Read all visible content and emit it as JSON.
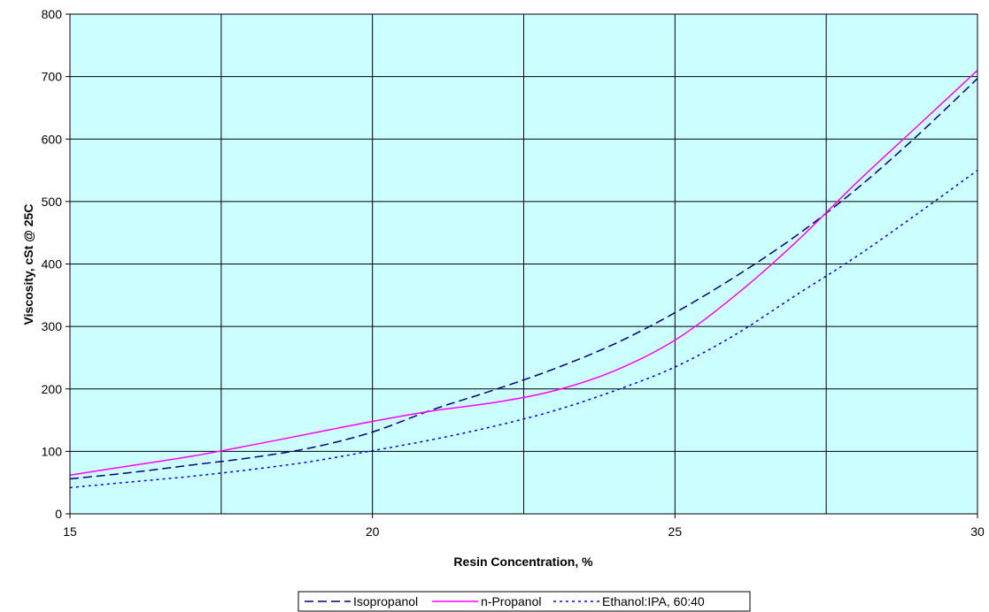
{
  "chart_data": {
    "type": "line",
    "title": "",
    "xlabel": "Resin Concentration, %",
    "ylabel": "Viscosity, cSt @ 25C",
    "xlim": [
      15,
      30
    ],
    "ylim": [
      0,
      800
    ],
    "x_ticks": [
      15,
      20,
      25,
      30
    ],
    "y_ticks": [
      0,
      100,
      200,
      300,
      400,
      500,
      600,
      700,
      800
    ],
    "grid": true,
    "plot_background": "#ccffff",
    "legend_position": "bottom",
    "series": [
      {
        "name": "Isopropanol",
        "color": "#000080",
        "dash": "dashed",
        "x": [
          15,
          16,
          17,
          18,
          19,
          20,
          21,
          22,
          23,
          24,
          25,
          26,
          27,
          28,
          29,
          30
        ],
        "y": [
          56,
          66,
          78,
          90,
          106,
          131,
          167,
          198,
          232,
          272,
          322,
          380,
          445,
          520,
          605,
          697
        ]
      },
      {
        "name": "n-Propanol",
        "color": "#ff00ff",
        "dash": "solid",
        "x": [
          15,
          16,
          17,
          18,
          19,
          20,
          21,
          22,
          23,
          24,
          25,
          26,
          27,
          28,
          29,
          30
        ],
        "y": [
          62,
          77,
          92,
          110,
          129,
          148,
          165,
          178,
          197,
          229,
          278,
          350,
          435,
          530,
          620,
          710
        ]
      },
      {
        "name": "Ethanol:IPA, 60:40",
        "color": "#0000ff",
        "dash": "dotted",
        "x": [
          15,
          16,
          17,
          18,
          19,
          20,
          21,
          22,
          23,
          24,
          25,
          26,
          27,
          28,
          29,
          30
        ],
        "y": [
          42,
          51,
          60,
          71,
          84,
          101,
          119,
          140,
          165,
          197,
          235,
          287,
          350,
          412,
          480,
          550
        ]
      }
    ]
  }
}
